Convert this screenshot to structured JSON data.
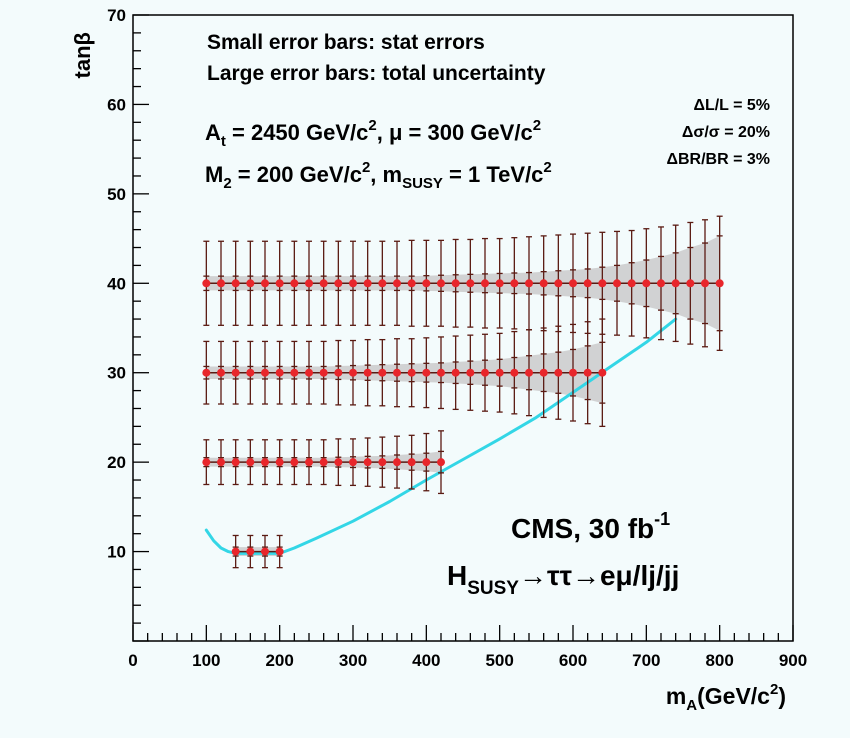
{
  "chart_data": {
    "type": "scatter",
    "xlabel": "m",
    "xlabel_sub": "A",
    "xlabel_unit": "(GeV/c",
    "xlabel_unit_sup": "2",
    "xlabel_unit_end": ")",
    "ylabel": "tanβ",
    "xlim": [
      0,
      900
    ],
    "ylim": [
      0,
      70
    ],
    "x_ticks": [
      "0",
      "100",
      "200",
      "300",
      "400",
      "500",
      "600",
      "700",
      "800",
      "900"
    ],
    "y_ticks": [
      "10",
      "20",
      "30",
      "40",
      "50",
      "60",
      "70"
    ],
    "colors": {
      "points": "#e8262b",
      "error_bars": "#5a1a12",
      "band": "#c8c8c8",
      "curve": "#33d6e6",
      "background": "#f3fbfc"
    },
    "series": [
      {
        "tanb": 40,
        "x": [
          100,
          120,
          140,
          160,
          180,
          200,
          220,
          240,
          260,
          280,
          300,
          320,
          340,
          360,
          380,
          400,
          420,
          440,
          460,
          480,
          500,
          520,
          540,
          560,
          580,
          600,
          620,
          640,
          660,
          680,
          700,
          720,
          740,
          760,
          780,
          800
        ],
        "stat": [
          0.8,
          0.8,
          0.8,
          0.8,
          0.8,
          0.8,
          0.8,
          0.8,
          0.8,
          0.8,
          0.8,
          0.8,
          0.8,
          0.8,
          0.8,
          0.85,
          0.9,
          0.95,
          1.0,
          1.05,
          1.1,
          1.15,
          1.2,
          1.3,
          1.4,
          1.5,
          1.6,
          1.8,
          2.0,
          2.3,
          2.6,
          3.0,
          3.4,
          4.0,
          4.5,
          5.3
        ],
        "total": [
          4.7,
          4.7,
          4.7,
          4.7,
          4.7,
          4.7,
          4.7,
          4.7,
          4.7,
          4.7,
          4.7,
          4.7,
          4.7,
          4.7,
          4.8,
          4.8,
          4.8,
          4.9,
          4.9,
          5.0,
          5.0,
          5.1,
          5.2,
          5.3,
          5.4,
          5.5,
          5.6,
          5.7,
          5.8,
          5.9,
          6.1,
          6.3,
          6.5,
          6.8,
          7.1,
          7.5
        ]
      },
      {
        "tanb": 30,
        "x": [
          100,
          120,
          140,
          160,
          180,
          200,
          220,
          240,
          260,
          280,
          300,
          320,
          340,
          360,
          380,
          400,
          420,
          440,
          460,
          480,
          500,
          520,
          540,
          560,
          580,
          600,
          620,
          640
        ],
        "stat": [
          0.7,
          0.7,
          0.7,
          0.7,
          0.7,
          0.7,
          0.7,
          0.7,
          0.7,
          0.75,
          0.8,
          0.85,
          0.9,
          0.95,
          1.0,
          1.05,
          1.1,
          1.2,
          1.3,
          1.4,
          1.5,
          1.7,
          1.9,
          2.1,
          2.3,
          2.6,
          3.0,
          3.4
        ],
        "total": [
          3.5,
          3.5,
          3.5,
          3.5,
          3.5,
          3.5,
          3.5,
          3.5,
          3.5,
          3.6,
          3.6,
          3.7,
          3.7,
          3.8,
          3.8,
          3.9,
          4.0,
          4.1,
          4.2,
          4.3,
          4.4,
          4.6,
          4.8,
          5.0,
          5.2,
          5.4,
          5.7,
          6.0
        ]
      },
      {
        "tanb": 20,
        "x": [
          100,
          120,
          140,
          160,
          180,
          200,
          220,
          240,
          260,
          280,
          300,
          320,
          340,
          360,
          380,
          400,
          420
        ],
        "stat": [
          0.5,
          0.5,
          0.5,
          0.5,
          0.5,
          0.5,
          0.5,
          0.5,
          0.5,
          0.55,
          0.6,
          0.65,
          0.7,
          0.8,
          0.9,
          1.0,
          1.2
        ],
        "total": [
          2.5,
          2.5,
          2.5,
          2.5,
          2.5,
          2.5,
          2.5,
          2.5,
          2.5,
          2.6,
          2.6,
          2.7,
          2.8,
          2.9,
          3.0,
          3.2,
          3.5
        ]
      },
      {
        "tanb": 10,
        "x": [
          140,
          160,
          180,
          200
        ],
        "stat": [
          0.5,
          0.5,
          0.5,
          0.5
        ],
        "total": [
          1.8,
          1.8,
          1.8,
          1.8
        ]
      }
    ],
    "curve": [
      [
        100,
        12.4
      ],
      [
        110,
        11.2
      ],
      [
        120,
        10.4
      ],
      [
        130,
        10.0
      ],
      [
        140,
        9.8
      ],
      [
        160,
        9.8
      ],
      [
        180,
        9.8
      ],
      [
        200,
        9.8
      ],
      [
        220,
        10.4
      ],
      [
        250,
        11.5
      ],
      [
        300,
        13.4
      ],
      [
        350,
        15.6
      ],
      [
        400,
        18.0
      ],
      [
        450,
        20.3
      ],
      [
        500,
        22.6
      ],
      [
        550,
        25.0
      ],
      [
        600,
        27.8
      ],
      [
        650,
        30.6
      ],
      [
        700,
        33.4
      ],
      [
        740,
        36.0
      ]
    ],
    "annotations": {
      "line1": "Small error bars: stat errors",
      "line2": "Large error bars: total uncertainty",
      "params1_a": "A",
      "params1_a_sub": "t",
      "params1_b": " = 2450 GeV/c",
      "params1_b_sup": "2",
      "params1_c": ", μ = 300 GeV/c",
      "params1_c_sup": "2",
      "params2_a": "M",
      "params2_a_sub": "2",
      "params2_b": " = 200 GeV/c",
      "params2_b_sup": "2",
      "params2_c": ", m",
      "params2_c_sub": "SUSY",
      "params2_d": " = 1 TeV/c",
      "params2_d_sup": "2",
      "syst1": "ΔL/L = 5%",
      "syst2": "Δσ/σ = 20%",
      "syst3": "ΔBR/BR = 3%",
      "cms_a": "CMS, 30 fb",
      "cms_sup": "-1",
      "channel_a": "H",
      "channel_sub": "SUSY",
      "channel_b": "→ττ→eμ/lj/jj"
    }
  }
}
